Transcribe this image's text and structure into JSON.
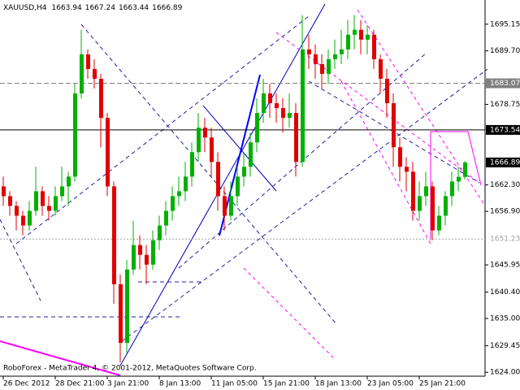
{
  "chart_data": {
    "type": "candlestick",
    "title": "XAUUSD,H4",
    "footer": "RoboForex - MetaTrader 4, © 2001-2012, MetaQuotes Software Corp.",
    "categories": [
      "26 Dec 2012",
      null,
      null,
      null,
      null,
      null,
      null,
      null,
      "28 Dec 21:00",
      null,
      null,
      null,
      null,
      null,
      null,
      null,
      "3 Jan 21:00",
      null,
      null,
      null,
      null,
      null,
      null,
      null,
      "8 Jan 13:00",
      null,
      null,
      null,
      null,
      null,
      null,
      null,
      "11 Jan 05:00",
      null,
      null,
      null,
      null,
      null,
      null,
      null,
      "15 Jan 21:00",
      null,
      null,
      null,
      null,
      null,
      null,
      null,
      "18 Jan 13:00",
      null,
      null,
      null,
      null,
      null,
      null,
      null,
      "23 Jan 05:00",
      null,
      null,
      null,
      null,
      null,
      null,
      null,
      "25 Jan 21:00",
      null,
      null,
      null,
      null,
      null,
      null,
      null
    ],
    "open": [
      1662,
      1660,
      1658,
      1656,
      1654,
      1657,
      1661,
      1658,
      1657,
      1660,
      1662,
      1664,
      1681,
      1689,
      1686,
      1684,
      1676,
      1662,
      1642,
      1630,
      1645,
      1650,
      1648,
      1646,
      1651,
      1654,
      1657,
      1660,
      1661,
      1664,
      1669,
      1674,
      1672,
      1667,
      1660,
      1656,
      1660,
      1664,
      1666,
      1671,
      1677,
      1681,
      1679,
      1678,
      1676,
      1677,
      1667,
      1690,
      1689,
      1687,
      1685,
      1688,
      1689,
      1690,
      1693,
      1694,
      1692,
      1693,
      1688,
      1684,
      1679,
      1670,
      1666,
      1665,
      1657,
      1660,
      1662,
      1653,
      1656,
      1660,
      1663,
      1663.94
    ],
    "high": [
      1664,
      1661,
      1659,
      1657,
      1659,
      1666,
      1662,
      1660,
      1662,
      1666,
      1665,
      1683,
      1694,
      1690,
      1688,
      1685,
      1677,
      1663,
      1644,
      1647,
      1655,
      1652,
      1650,
      1653,
      1656,
      1659,
      1662,
      1664,
      1667,
      1671,
      1677,
      1676,
      1674,
      1669,
      1662,
      1663,
      1666,
      1669,
      1673,
      1680,
      1684,
      1683,
      1681,
      1680,
      1681,
      1679,
      1697,
      1693,
      1691,
      1689,
      1690,
      1692,
      1694,
      1696,
      1697,
      1696,
      1695,
      1694,
      1689,
      1686,
      1681,
      1672,
      1668,
      1667,
      1663,
      1665,
      1663,
      1658,
      1661,
      1665,
      1666,
      1667.24
    ],
    "low": [
      1658,
      1656,
      1653,
      1652,
      1653,
      1656,
      1656,
      1655,
      1656,
      1659,
      1658,
      1663,
      1680,
      1684,
      1682,
      1670,
      1660,
      1638,
      1626,
      1628,
      1644,
      1645,
      1642,
      1645,
      1649,
      1652,
      1655,
      1658,
      1659,
      1662,
      1667,
      1669,
      1664,
      1657,
      1653,
      1655,
      1658,
      1662,
      1664,
      1669,
      1675,
      1676,
      1675,
      1673,
      1674,
      1664,
      1666,
      1686,
      1684,
      1682,
      1683,
      1686,
      1687,
      1688,
      1690,
      1689,
      1689,
      1686,
      1681,
      1676,
      1666,
      1663,
      1661,
      1655,
      1655,
      1658,
      1651,
      1652,
      1654,
      1658,
      1661,
      1663.44
    ],
    "close": [
      1660,
      1658,
      1656,
      1654,
      1657,
      1661,
      1658,
      1657,
      1660,
      1662,
      1664,
      1681,
      1689,
      1686,
      1684,
      1676,
      1662,
      1642,
      1630,
      1645,
      1650,
      1648,
      1646,
      1651,
      1654,
      1657,
      1660,
      1661,
      1664,
      1669,
      1674,
      1672,
      1667,
      1660,
      1656,
      1660,
      1664,
      1666,
      1671,
      1677,
      1681,
      1679,
      1678,
      1676,
      1677,
      1667,
      1690,
      1689,
      1687,
      1685,
      1688,
      1689,
      1690,
      1693,
      1694,
      1692,
      1693,
      1688,
      1684,
      1679,
      1670,
      1666,
      1665,
      1657,
      1660,
      1662,
      1653,
      1656,
      1660,
      1663,
      1663.94,
      1666.89
    ],
    "up_color": "#00b000",
    "down_color": "#e00000",
    "ylim": [
      1623.2,
      1700.1
    ],
    "yticks": [
      1695.15,
      {
        "value": 1689.7,
        "label": "1689.70"
      },
      {
        "value": 1678.75,
        "label": "1678.75"
      },
      {
        "value": 1662.3,
        "label": "1662.30"
      },
      {
        "value": 1656.9,
        "label": "1656.90"
      },
      1645.95,
      {
        "value": 1640.4,
        "label": "1640.40"
      },
      {
        "value": 1635,
        "label": "1635.00"
      },
      1629.45,
      {
        "value": 1624,
        "label": "1624.00"
      }
    ],
    "hlines": [
      {
        "value": 1683.07,
        "style": "dashed",
        "color": "#808080"
      },
      {
        "value": 1673.54,
        "style": "solid",
        "color": "#000000"
      },
      {
        "value": 1651.23,
        "style": "dotted",
        "color": "#a0a0a0"
      }
    ]
  }
}
